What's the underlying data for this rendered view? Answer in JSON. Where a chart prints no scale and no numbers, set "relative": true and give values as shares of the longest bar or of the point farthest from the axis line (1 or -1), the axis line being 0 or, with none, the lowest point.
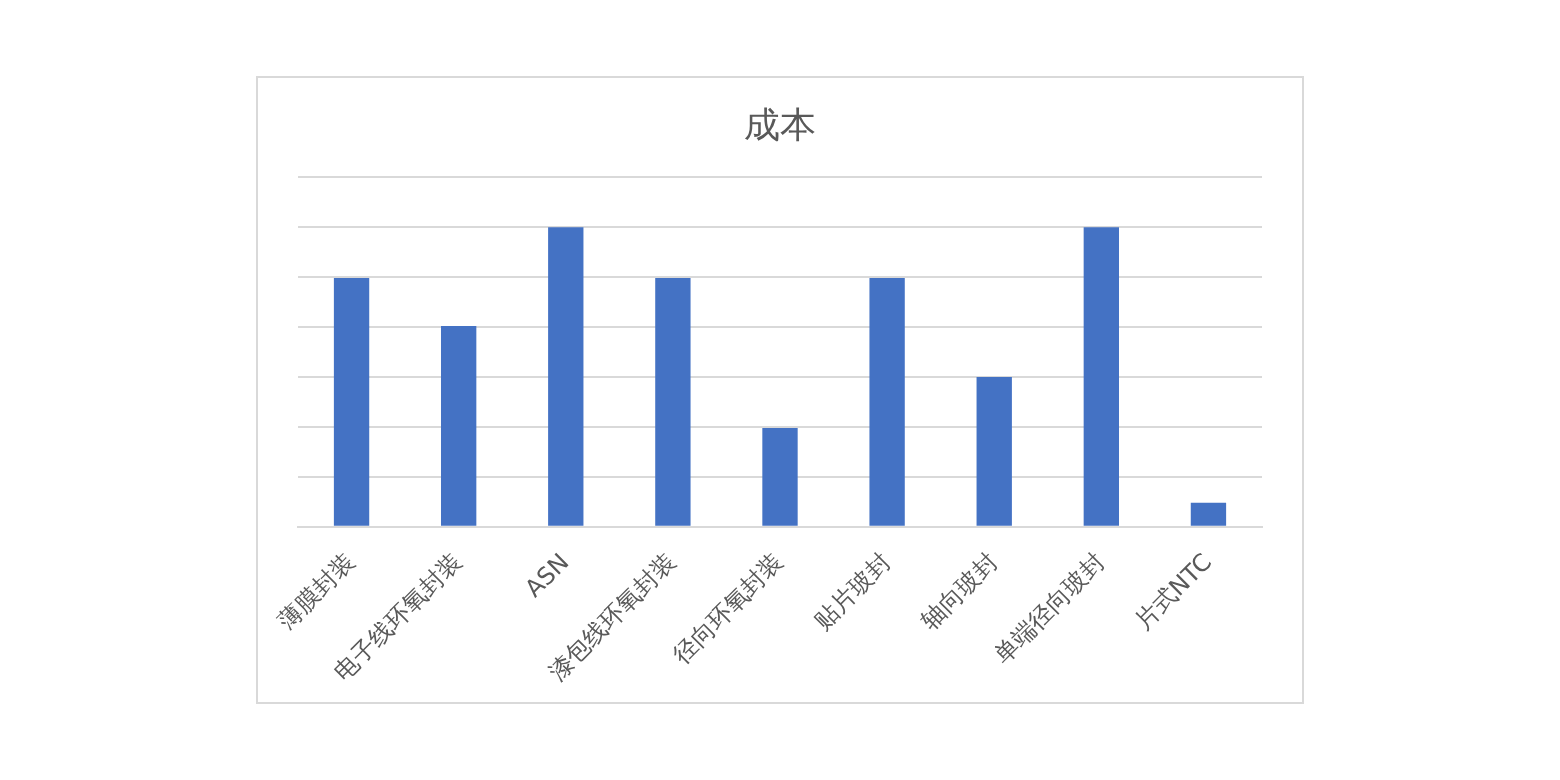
{
  "chart_data": {
    "type": "bar",
    "title": "成本",
    "categories": [
      "薄膜封装",
      "电子线环氧封装",
      "ASN",
      "漆包线环氧封装",
      "径向环氧封装",
      "贴片玻封",
      "轴向玻封",
      "单端径向玻封",
      "片式NTC"
    ],
    "values": [
      0.83,
      0.67,
      1,
      0.83,
      0.33,
      0.83,
      0.5,
      1,
      0.08
    ],
    "color": "#4472c4",
    "relative": true,
    "grid": "y",
    "legend": false
  }
}
